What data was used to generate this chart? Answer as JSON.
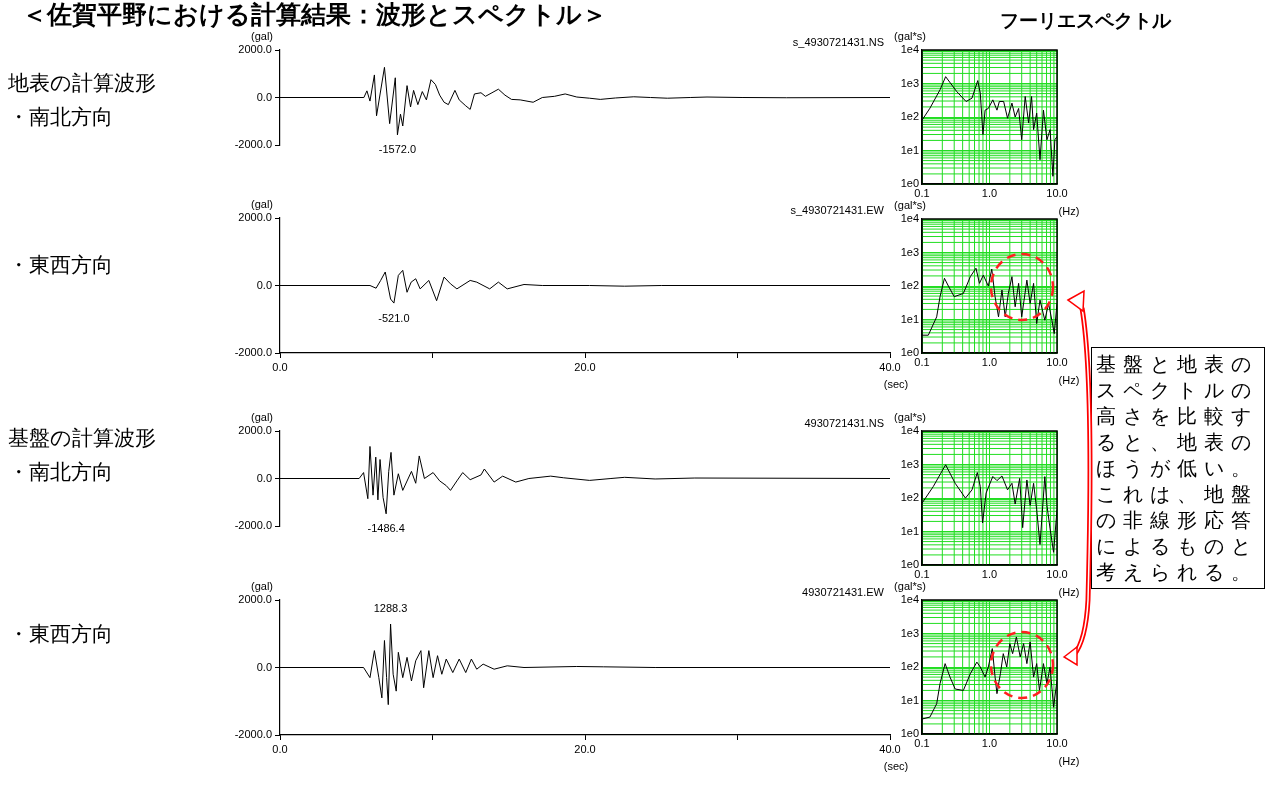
{
  "chart_data": [
    {
      "type": "line",
      "title": "＜佐賀平野における計算結果：波形とスペクトル＞",
      "subtitle": "s_4930721431.NS",
      "ylabel": "(gal)",
      "color": "#000000",
      "marker": "none",
      "tick_labels": "y",
      "xlim": [
        0,
        40
      ],
      "ylim": [
        -2000,
        2000
      ],
      "yticks": [
        {
          "value": 2000,
          "label": "2000.0"
        },
        {
          "value": 0,
          "label": "0.0"
        },
        {
          "value": -2000,
          "label": "-2000.0"
        }
      ],
      "x": [
        0,
        5.5,
        5.7,
        5.9,
        6.19,
        6.33,
        6.85,
        7.19,
        7.56,
        7.7,
        7.9,
        8.05,
        8.33,
        8.56,
        8.76,
        9.04,
        9.33,
        9.6,
        9.9,
        10.19,
        10.47,
        10.76,
        11.04,
        11.47,
        11.75,
        12.18,
        12.47,
        12.75,
        13.18,
        13.47,
        13.9,
        14.32,
        14.75,
        15.18,
        15.75,
        16.6,
        17.2,
        18.0,
        18.7,
        19.46,
        20.3,
        21.0,
        22.0,
        23.2,
        24.3,
        25.4,
        26.9,
        28.0,
        30.3,
        33.2,
        40
      ],
      "values": [
        0,
        0,
        280,
        -150,
        950,
        -770,
        1270,
        -1100,
        830,
        -1572,
        -700,
        -1200,
        500,
        -400,
        300,
        -300,
        250,
        -100,
        750,
        550,
        100,
        -200,
        -300,
        300,
        -100,
        -350,
        -500,
        150,
        200,
        50,
        200,
        350,
        100,
        -80,
        -100,
        -200,
        0,
        50,
        150,
        20,
        -30,
        -80,
        -20,
        30,
        0,
        -30,
        0,
        20,
        0,
        -10,
        0
      ],
      "annotations": [
        "地表の計算波形",
        "・南北方向",
        {
          "text": "-1572.0",
          "x": 7.7,
          "y": -1572
        }
      ]
    },
    {
      "type": "line",
      "title": "フーリエスペクトル",
      "ylabel": "(gal*s)",
      "xlabel": "(Hz)",
      "color": "#000000",
      "marker": "none",
      "log": "xy",
      "grid": true,
      "xlim": [
        0.1,
        10
      ],
      "ylim": [
        1,
        10000
      ],
      "xticks": [
        {
          "value": 0.1,
          "label": "0.1"
        },
        {
          "value": 1,
          "label": "1.0"
        },
        {
          "value": 10,
          "label": "10.0"
        }
      ],
      "yticks": [
        {
          "value": 1,
          "label": "1e0"
        },
        {
          "value": 10,
          "label": "1e1"
        },
        {
          "value": 100,
          "label": "1e2"
        },
        {
          "value": 1000,
          "label": "1e3"
        },
        {
          "value": 10000,
          "label": "1e4"
        }
      ],
      "x": [
        0.1,
        0.131,
        0.185,
        0.224,
        0.327,
        0.45,
        0.55,
        0.67,
        0.73,
        0.8,
        0.86,
        0.96,
        1.12,
        1.29,
        1.4,
        1.62,
        1.85,
        2.15,
        2.4,
        2.7,
        3.0,
        3.38,
        3.8,
        4.2,
        4.5,
        5.0,
        5.6,
        6.3,
        7.1,
        7.9,
        8.7,
        9.3,
        10
      ],
      "values": [
        80,
        183,
        650,
        1600,
        575,
        290,
        365,
        1220,
        515,
        30,
        160,
        180,
        325,
        160,
        290,
        290,
        92,
        260,
        100,
        180,
        21,
        410,
        66,
        410,
        42,
        130,
        5.3,
        160,
        21,
        42,
        1.7,
        21,
        26
      ]
    },
    {
      "type": "line",
      "subtitle": "s_4930721431.EW",
      "ylabel": "(gal)",
      "xlabel": "(sec)",
      "color": "#000000",
      "marker": "none",
      "xlim": [
        0,
        40
      ],
      "ylim": [
        -2000,
        2000
      ],
      "xticks": [
        {
          "value": 0,
          "label": "0.0"
        },
        {
          "value": 10,
          "label": null
        },
        {
          "value": 20,
          "label": "20.0"
        },
        {
          "value": 30,
          "label": null
        },
        {
          "value": 40,
          "label": "40.0"
        }
      ],
      "yticks": [
        {
          "value": 2000,
          "label": "2000.0"
        },
        {
          "value": 0,
          "label": "0.0"
        },
        {
          "value": -2000,
          "label": "-2000.0"
        }
      ],
      "x": [
        0,
        5.9,
        6.3,
        6.6,
        6.9,
        7.25,
        7.47,
        7.76,
        8.05,
        8.33,
        8.6,
        8.9,
        9.19,
        9.76,
        10.27,
        10.76,
        11.18,
        11.6,
        12.47,
        12.9,
        13.75,
        14.32,
        14.9,
        16.0,
        17.2,
        20.3,
        22.6,
        25,
        40
      ],
      "values": [
        0,
        0,
        -80,
        150,
        400,
        -400,
        -521,
        300,
        450,
        -200,
        100,
        200,
        -100,
        150,
        -450,
        250,
        50,
        -100,
        150,
        100,
        -100,
        100,
        -100,
        30,
        0,
        0,
        -20,
        0,
        0
      ],
      "annotations": [
        "・東西方向",
        {
          "text": "-521.0",
          "x": 7.47,
          "y": -521
        }
      ]
    },
    {
      "type": "line",
      "ylabel": "(gal*s)",
      "xlabel": "(Hz)",
      "color": "#000000",
      "marker": "none",
      "log": "xy",
      "grid": true,
      "xlim": [
        0.1,
        10
      ],
      "ylim": [
        1,
        10000
      ],
      "xticks": [
        {
          "value": 0.1,
          "label": "0.1"
        },
        {
          "value": 1,
          "label": "1.0"
        },
        {
          "value": 10,
          "label": "10.0"
        }
      ],
      "yticks": [
        {
          "value": 1,
          "label": "1e0"
        },
        {
          "value": 10,
          "label": "1e1"
        },
        {
          "value": 100,
          "label": "1e2"
        },
        {
          "value": 1000,
          "label": "1e3"
        },
        {
          "value": 10000,
          "label": "1e4"
        }
      ],
      "x": [
        0.1,
        0.124,
        0.165,
        0.185,
        0.215,
        0.246,
        0.3,
        0.41,
        0.52,
        0.63,
        0.71,
        0.81,
        0.96,
        1.08,
        1.21,
        1.36,
        1.53,
        1.71,
        1.9,
        2.15,
        2.4,
        2.7,
        3.0,
        3.58,
        4.0,
        4.5,
        5.0,
        5.6,
        6.6,
        7.5,
        8.4,
        9.1,
        10
      ],
      "values": [
        3.4,
        3.4,
        12,
        48,
        170,
        100,
        48,
        60,
        190,
        340,
        120,
        210,
        100,
        320,
        48,
        12,
        76,
        12,
        60,
        190,
        24,
        120,
        12,
        150,
        30,
        120,
        7.6,
        38,
        9.5,
        30,
        9.5,
        3.8,
        30
      ]
    },
    {
      "type": "line",
      "subtitle": "4930721431.NS",
      "ylabel": "(gal)",
      "color": "#000000",
      "marker": "none",
      "tick_labels": "y",
      "xlim": [
        0,
        40
      ],
      "ylim": [
        -2000,
        2000
      ],
      "yticks": [
        {
          "value": 2000,
          "label": "2000.0"
        },
        {
          "value": 0,
          "label": "0.0"
        },
        {
          "value": -2000,
          "label": "-2000.0"
        }
      ],
      "x": [
        0,
        5.19,
        5.48,
        5.76,
        5.9,
        6.1,
        6.28,
        6.42,
        6.56,
        6.76,
        6.96,
        7.13,
        7.28,
        7.47,
        7.76,
        8.05,
        8.62,
        8.9,
        9.13,
        9.47,
        10.04,
        10.47,
        10.9,
        11.18,
        11.6,
        11.98,
        12.47,
        13.18,
        13.4,
        14.04,
        14.6,
        15.46,
        16.32,
        17.75,
        18.6,
        20.3,
        21.7,
        22.6,
        24.6,
        27.2,
        40
      ],
      "values": [
        0,
        0,
        250,
        -850,
        1350,
        -700,
        900,
        -900,
        800,
        -800,
        -1486.4,
        300,
        1100,
        -700,
        200,
        -500,
        300,
        -200,
        950,
        0,
        250,
        -100,
        -300,
        -500,
        -100,
        250,
        -50,
        150,
        400,
        -150,
        100,
        -150,
        0,
        100,
        30,
        -80,
        0,
        50,
        -20,
        20,
        0
      ],
      "annotations": [
        "基盤の計算波形",
        "・南北方向",
        {
          "text": "-1486.4",
          "x": 6.96,
          "y": -1486.4
        }
      ]
    },
    {
      "type": "line",
      "ylabel": "(gal*s)",
      "xlabel": "(Hz)",
      "color": "#000000",
      "marker": "none",
      "log": "xy",
      "grid": true,
      "xlim": [
        0.1,
        10
      ],
      "ylim": [
        1,
        10000
      ],
      "xticks": [
        {
          "value": 0.1,
          "label": "0.1"
        },
        {
          "value": 1,
          "label": "1.0"
        },
        {
          "value": 10,
          "label": "10.0"
        }
      ],
      "yticks": [
        {
          "value": 1,
          "label": "1e0"
        },
        {
          "value": 10,
          "label": "1e1"
        },
        {
          "value": 100,
          "label": "1e2"
        },
        {
          "value": 1000,
          "label": "1e3"
        },
        {
          "value": 10000,
          "label": "1e4"
        }
      ],
      "x": [
        0.1,
        0.147,
        0.19,
        0.224,
        0.31,
        0.44,
        0.55,
        0.66,
        0.73,
        0.79,
        0.89,
        1.12,
        1.29,
        1.53,
        1.85,
        2.15,
        2.4,
        2.8,
        3.1,
        3.58,
        4.0,
        4.5,
        5.0,
        5.6,
        6.6,
        7.1,
        7.9,
        8.9,
        10
      ],
      "values": [
        70,
        220,
        550,
        980,
        275,
        99,
        175,
        575,
        220,
        18,
        140,
        440,
        330,
        455,
        175,
        275,
        66,
        385,
        13,
        345,
        60,
        275,
        45,
        4.1,
        435,
        60,
        12,
        2.4,
        45
      ],
      "annotations": [
        "基盤と地表のスペクトルの高さを比較すると、地表のほうが低い。これは、地盤の非線形応答によるものと考えられる。"
      ]
    },
    {
      "type": "line",
      "subtitle": "4930721431.EW",
      "ylabel": "(gal)",
      "xlabel": "(sec)",
      "color": "#000000",
      "marker": "none",
      "xlim": [
        0,
        40
      ],
      "ylim": [
        -2000,
        2000
      ],
      "xticks": [
        {
          "value": 0,
          "label": "0.0"
        },
        {
          "value": 10,
          "label": null
        },
        {
          "value": 20,
          "label": "20.0"
        },
        {
          "value": 30,
          "label": null
        },
        {
          "value": 40,
          "label": "40.0"
        }
      ],
      "yticks": [
        {
          "value": 2000,
          "label": "2000.0"
        },
        {
          "value": 0,
          "label": "0.0"
        },
        {
          "value": -2000,
          "label": "-2000.0"
        }
      ],
      "x": [
        0,
        5.48,
        5.9,
        6.19,
        6.48,
        6.68,
        6.85,
        6.99,
        7.1,
        7.25,
        7.42,
        7.62,
        7.76,
        8.05,
        8.33,
        8.62,
        8.9,
        9.24,
        9.42,
        9.76,
        10.04,
        10.33,
        10.61,
        10.9,
        11.33,
        11.75,
        12.18,
        12.55,
        12.9,
        13.32,
        14.04,
        14.9,
        16.0,
        19.46,
        21.2,
        24.6,
        40
      ],
      "values": [
        0,
        0,
        -300,
        500,
        -300,
        -900,
        800,
        -300,
        -1100,
        1288.3,
        -200,
        -700,
        450,
        -300,
        300,
        -400,
        200,
        500,
        -600,
        500,
        -300,
        350,
        -200,
        250,
        -150,
        250,
        -150,
        250,
        -50,
        100,
        -50,
        50,
        0,
        30,
        20,
        0,
        0
      ],
      "annotations": [
        "・東西方向",
        {
          "text": "1288.3",
          "x": 7.25,
          "y": 1288.3
        }
      ]
    },
    {
      "type": "line",
      "ylabel": "(gal*s)",
      "xlabel": "(Hz)",
      "color": "#000000",
      "marker": "none",
      "log": "xy",
      "grid": true,
      "xlim": [
        0.1,
        10
      ],
      "ylim": [
        1,
        10000
      ],
      "xticks": [
        {
          "value": 0.1,
          "label": "0.1"
        },
        {
          "value": 1,
          "label": "1.0"
        },
        {
          "value": 10,
          "label": "10.0"
        }
      ],
      "yticks": [
        {
          "value": 1,
          "label": "1e0"
        },
        {
          "value": 10,
          "label": "1e1"
        },
        {
          "value": 100,
          "label": "1e2"
        },
        {
          "value": 1000,
          "label": "1e3"
        },
        {
          "value": 10000,
          "label": "1e4"
        }
      ],
      "x": [
        0.1,
        0.131,
        0.165,
        0.185,
        0.22,
        0.26,
        0.31,
        0.41,
        0.52,
        0.65,
        0.73,
        0.86,
        0.96,
        1.1,
        1.21,
        1.29,
        1.45,
        1.6,
        1.8,
        2.0,
        2.2,
        2.5,
        2.85,
        3.2,
        3.58,
        4.0,
        4.5,
        5.0,
        5.5,
        6.3,
        7.1,
        7.9,
        8.9,
        10
      ],
      "values": [
        2.8,
        3.2,
        8,
        32,
        126,
        50,
        22,
        20,
        63,
        140,
        100,
        50,
        100,
        355,
        50,
        16,
        63,
        250,
        100,
        500,
        250,
        790,
        200,
        500,
        126,
        560,
        50,
        126,
        20,
        126,
        32,
        100,
        6.3,
        40
      ]
    }
  ]
}
